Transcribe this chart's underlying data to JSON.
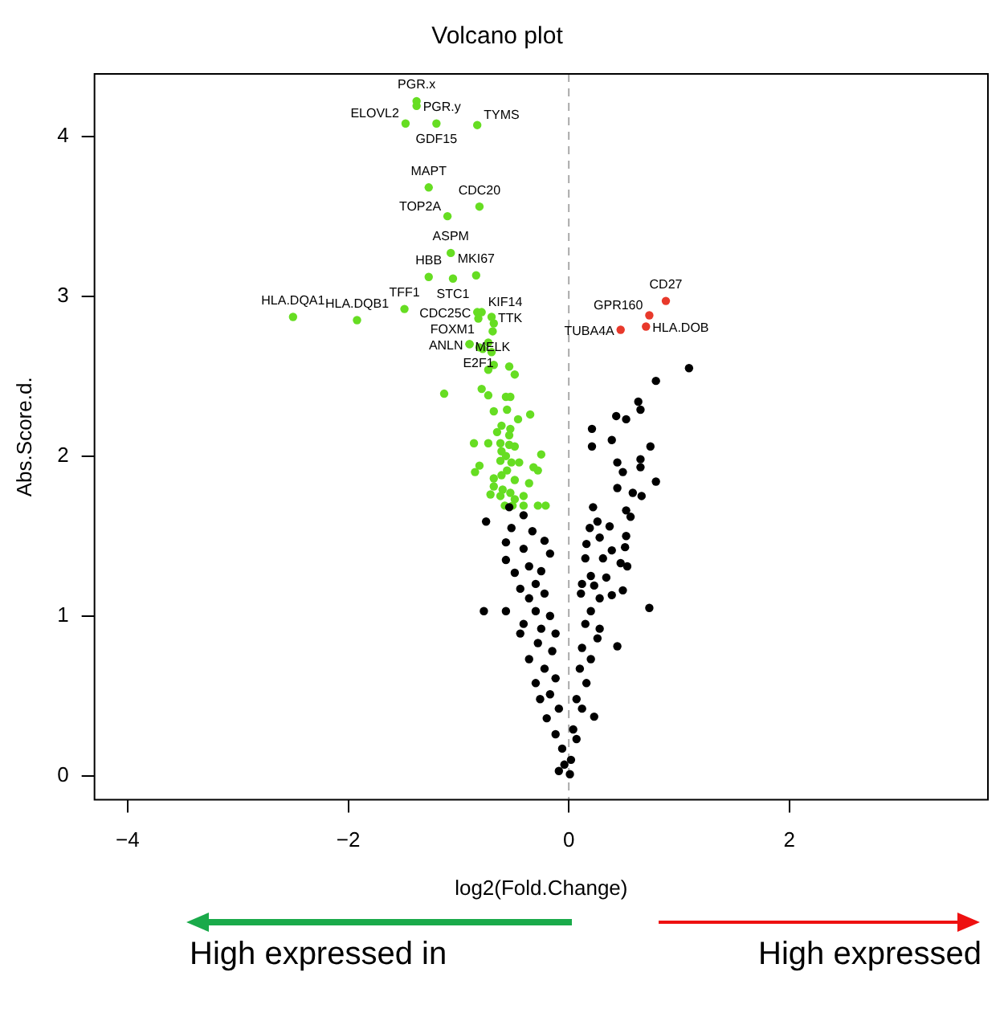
{
  "chart_data": {
    "type": "scatter",
    "title": "Volcano plot",
    "xlabel": "log2(Fold.Change)",
    "ylabel": "Abs.Score.d.",
    "xlim": [
      -4.3,
      3.8
    ],
    "xticks": [
      -4,
      -2,
      0,
      2
    ],
    "ylim": [
      -0.15,
      4.39
    ],
    "yticks": [
      0,
      1,
      2,
      3,
      4
    ],
    "grid": false,
    "legend": false,
    "marker": "circle",
    "ref_lines": [
      {
        "axis": "x",
        "value": 0,
        "color": "#aaaaaa",
        "line_style": "dashed"
      }
    ],
    "series": [
      {
        "color": "#000000",
        "x": [
          1.09,
          0.79,
          0.63,
          0.65,
          0.43,
          0.52,
          0.21,
          0.39,
          0.21,
          0.74,
          0.65,
          0.44,
          0.49,
          0.65,
          0.79,
          0.44,
          0.58,
          0.66,
          0.22,
          0.52,
          0.56,
          0.26,
          0.19,
          0.37,
          0.52,
          0.28,
          0.16,
          0.39,
          0.51,
          0.15,
          0.31,
          0.47,
          0.53,
          0.2,
          0.34,
          0.12,
          0.23,
          0.49,
          0.39,
          0.73,
          0.28,
          0.11,
          0.2,
          0.28,
          0.15,
          0.44,
          0.26,
          0.12,
          0.2,
          0.1,
          0.16,
          0.23,
          0.07,
          0.12,
          0.04,
          0.07,
          0.02,
          0.01,
          -0.54,
          -0.41,
          -0.75,
          -0.52,
          -0.33,
          -0.57,
          -0.41,
          -0.22,
          -0.17,
          -0.57,
          -0.36,
          -0.25,
          -0.49,
          -0.3,
          -0.44,
          -0.22,
          -0.36,
          -0.77,
          -0.57,
          -0.3,
          -0.17,
          -0.41,
          -0.25,
          -0.12,
          -0.44,
          -0.28,
          -0.15,
          -0.36,
          -0.22,
          -0.12,
          -0.3,
          -0.17,
          -0.26,
          -0.09,
          -0.2,
          -0.12,
          -0.06,
          -0.04,
          -0.09
        ],
        "values": [
          2.55,
          2.47,
          2.34,
          2.29,
          2.25,
          2.23,
          2.17,
          2.1,
          2.06,
          2.06,
          1.98,
          1.96,
          1.9,
          1.93,
          1.84,
          1.8,
          1.77,
          1.75,
          1.68,
          1.66,
          1.62,
          1.59,
          1.55,
          1.56,
          1.5,
          1.49,
          1.45,
          1.41,
          1.43,
          1.36,
          1.36,
          1.33,
          1.31,
          1.25,
          1.24,
          1.2,
          1.19,
          1.16,
          1.13,
          1.05,
          1.11,
          1.14,
          1.03,
          0.92,
          0.95,
          0.81,
          0.86,
          0.8,
          0.73,
          0.67,
          0.58,
          0.37,
          0.48,
          0.42,
          0.29,
          0.23,
          0.1,
          0.01,
          1.68,
          1.63,
          1.59,
          1.55,
          1.53,
          1.46,
          1.42,
          1.47,
          1.39,
          1.35,
          1.31,
          1.28,
          1.27,
          1.2,
          1.17,
          1.14,
          1.11,
          1.03,
          1.03,
          1.03,
          1.0,
          0.95,
          0.92,
          0.89,
          0.89,
          0.83,
          0.78,
          0.73,
          0.67,
          0.61,
          0.58,
          0.51,
          0.48,
          0.42,
          0.36,
          0.26,
          0.17,
          0.07,
          0.03
        ]
      },
      {
        "color": "#66dd22",
        "x": [
          -1.38,
          -1.38,
          -1.48,
          -1.2,
          -0.83,
          -1.27,
          -0.81,
          -1.1,
          -1.07,
          -1.27,
          -1.05,
          -0.84,
          -1.49,
          -2.5,
          -1.92,
          -0.83,
          -0.79,
          -0.7,
          -0.82,
          -0.68,
          -0.69,
          -0.9,
          -0.9,
          -0.81,
          -0.73,
          -0.7,
          -0.78,
          -0.68,
          -0.73,
          -0.54,
          -0.49,
          -1.13,
          -0.79,
          -0.73,
          -0.57,
          -0.53,
          -0.68,
          -0.56,
          -0.35,
          -0.46,
          -0.61,
          -0.53,
          -0.54,
          -0.65,
          -0.86,
          -0.73,
          -0.62,
          -0.54,
          -0.49,
          -0.25,
          -0.61,
          -0.57,
          -0.62,
          -0.52,
          -0.45,
          -0.32,
          -0.28,
          -0.81,
          -0.85,
          -0.56,
          -0.61,
          -0.49,
          -0.68,
          -0.36,
          -0.68,
          -0.6,
          -0.53,
          -0.41,
          -0.71,
          -0.62,
          -0.49,
          -0.58,
          -0.41,
          -0.28,
          -0.21,
          -0.51
        ],
        "values": [
          4.22,
          4.19,
          4.08,
          4.08,
          4.07,
          3.68,
          3.56,
          3.5,
          3.27,
          3.12,
          3.11,
          3.13,
          2.92,
          2.87,
          2.85,
          2.9,
          2.9,
          2.87,
          2.86,
          2.83,
          2.78,
          2.7,
          2.7,
          2.68,
          2.71,
          2.65,
          2.67,
          2.57,
          2.54,
          2.56,
          2.51,
          2.39,
          2.42,
          2.38,
          2.37,
          2.37,
          2.28,
          2.29,
          2.26,
          2.23,
          2.19,
          2.17,
          2.13,
          2.15,
          2.08,
          2.08,
          2.08,
          2.07,
          2.06,
          2.01,
          2.03,
          2.0,
          1.97,
          1.96,
          1.96,
          1.93,
          1.91,
          1.94,
          1.9,
          1.91,
          1.88,
          1.85,
          1.86,
          1.83,
          1.81,
          1.79,
          1.77,
          1.75,
          1.76,
          1.75,
          1.73,
          1.69,
          1.69,
          1.69,
          1.69,
          1.69
        ]
      },
      {
        "color": "#e8392b",
        "x": [
          0.88,
          0.73,
          0.7,
          0.47
        ],
        "values": [
          2.97,
          2.88,
          2.81,
          2.79
        ]
      }
    ],
    "annotations": [
      {
        "text": "PGR.x",
        "x": -1.38,
        "y": 4.22
      },
      {
        "text": "PGR.y",
        "x": -1.38,
        "y": 4.19
      },
      {
        "text": "ELOVL2",
        "x": -1.48,
        "y": 4.08
      },
      {
        "text": "GDF15",
        "x": -1.2,
        "y": 4.08
      },
      {
        "text": "TYMS",
        "x": -0.83,
        "y": 4.07
      },
      {
        "text": "MAPT",
        "x": -1.27,
        "y": 3.68
      },
      {
        "text": "CDC20",
        "x": -0.81,
        "y": 3.56
      },
      {
        "text": "TOP2A",
        "x": -1.1,
        "y": 3.5
      },
      {
        "text": "ASPM",
        "x": -1.07,
        "y": 3.27
      },
      {
        "text": "HBB",
        "x": -1.27,
        "y": 3.12
      },
      {
        "text": "STC1",
        "x": -1.05,
        "y": 3.11
      },
      {
        "text": "MKI67",
        "x": -0.84,
        "y": 3.13
      },
      {
        "text": "TFF1",
        "x": -1.49,
        "y": 2.92
      },
      {
        "text": "HLA.DQA1",
        "x": -2.5,
        "y": 2.87
      },
      {
        "text": "HLA.DQB1",
        "x": -1.92,
        "y": 2.85
      },
      {
        "text": "CDC25C",
        "x": -0.83,
        "y": 2.9
      },
      {
        "text": "KIF14",
        "x": -0.79,
        "y": 2.9
      },
      {
        "text": "TTK",
        "x": -0.7,
        "y": 2.87
      },
      {
        "text": "E2F1",
        "x": -0.82,
        "y": 2.86
      },
      {
        "text": "FOXM1",
        "x": -0.68,
        "y": 2.83
      },
      {
        "text": "MELK",
        "x": -0.69,
        "y": 2.78
      },
      {
        "text": "ANLN",
        "x": -0.9,
        "y": 2.7
      },
      {
        "text": "CD27",
        "x": 0.88,
        "y": 2.97
      },
      {
        "text": "GPR160",
        "x": 0.73,
        "y": 2.88
      },
      {
        "text": "HLA.DOB",
        "x": 0.7,
        "y": 2.81
      },
      {
        "text": "TUBA4A",
        "x": 0.47,
        "y": 2.79
      },
      "High expressed in",
      "High expressed"
    ]
  }
}
